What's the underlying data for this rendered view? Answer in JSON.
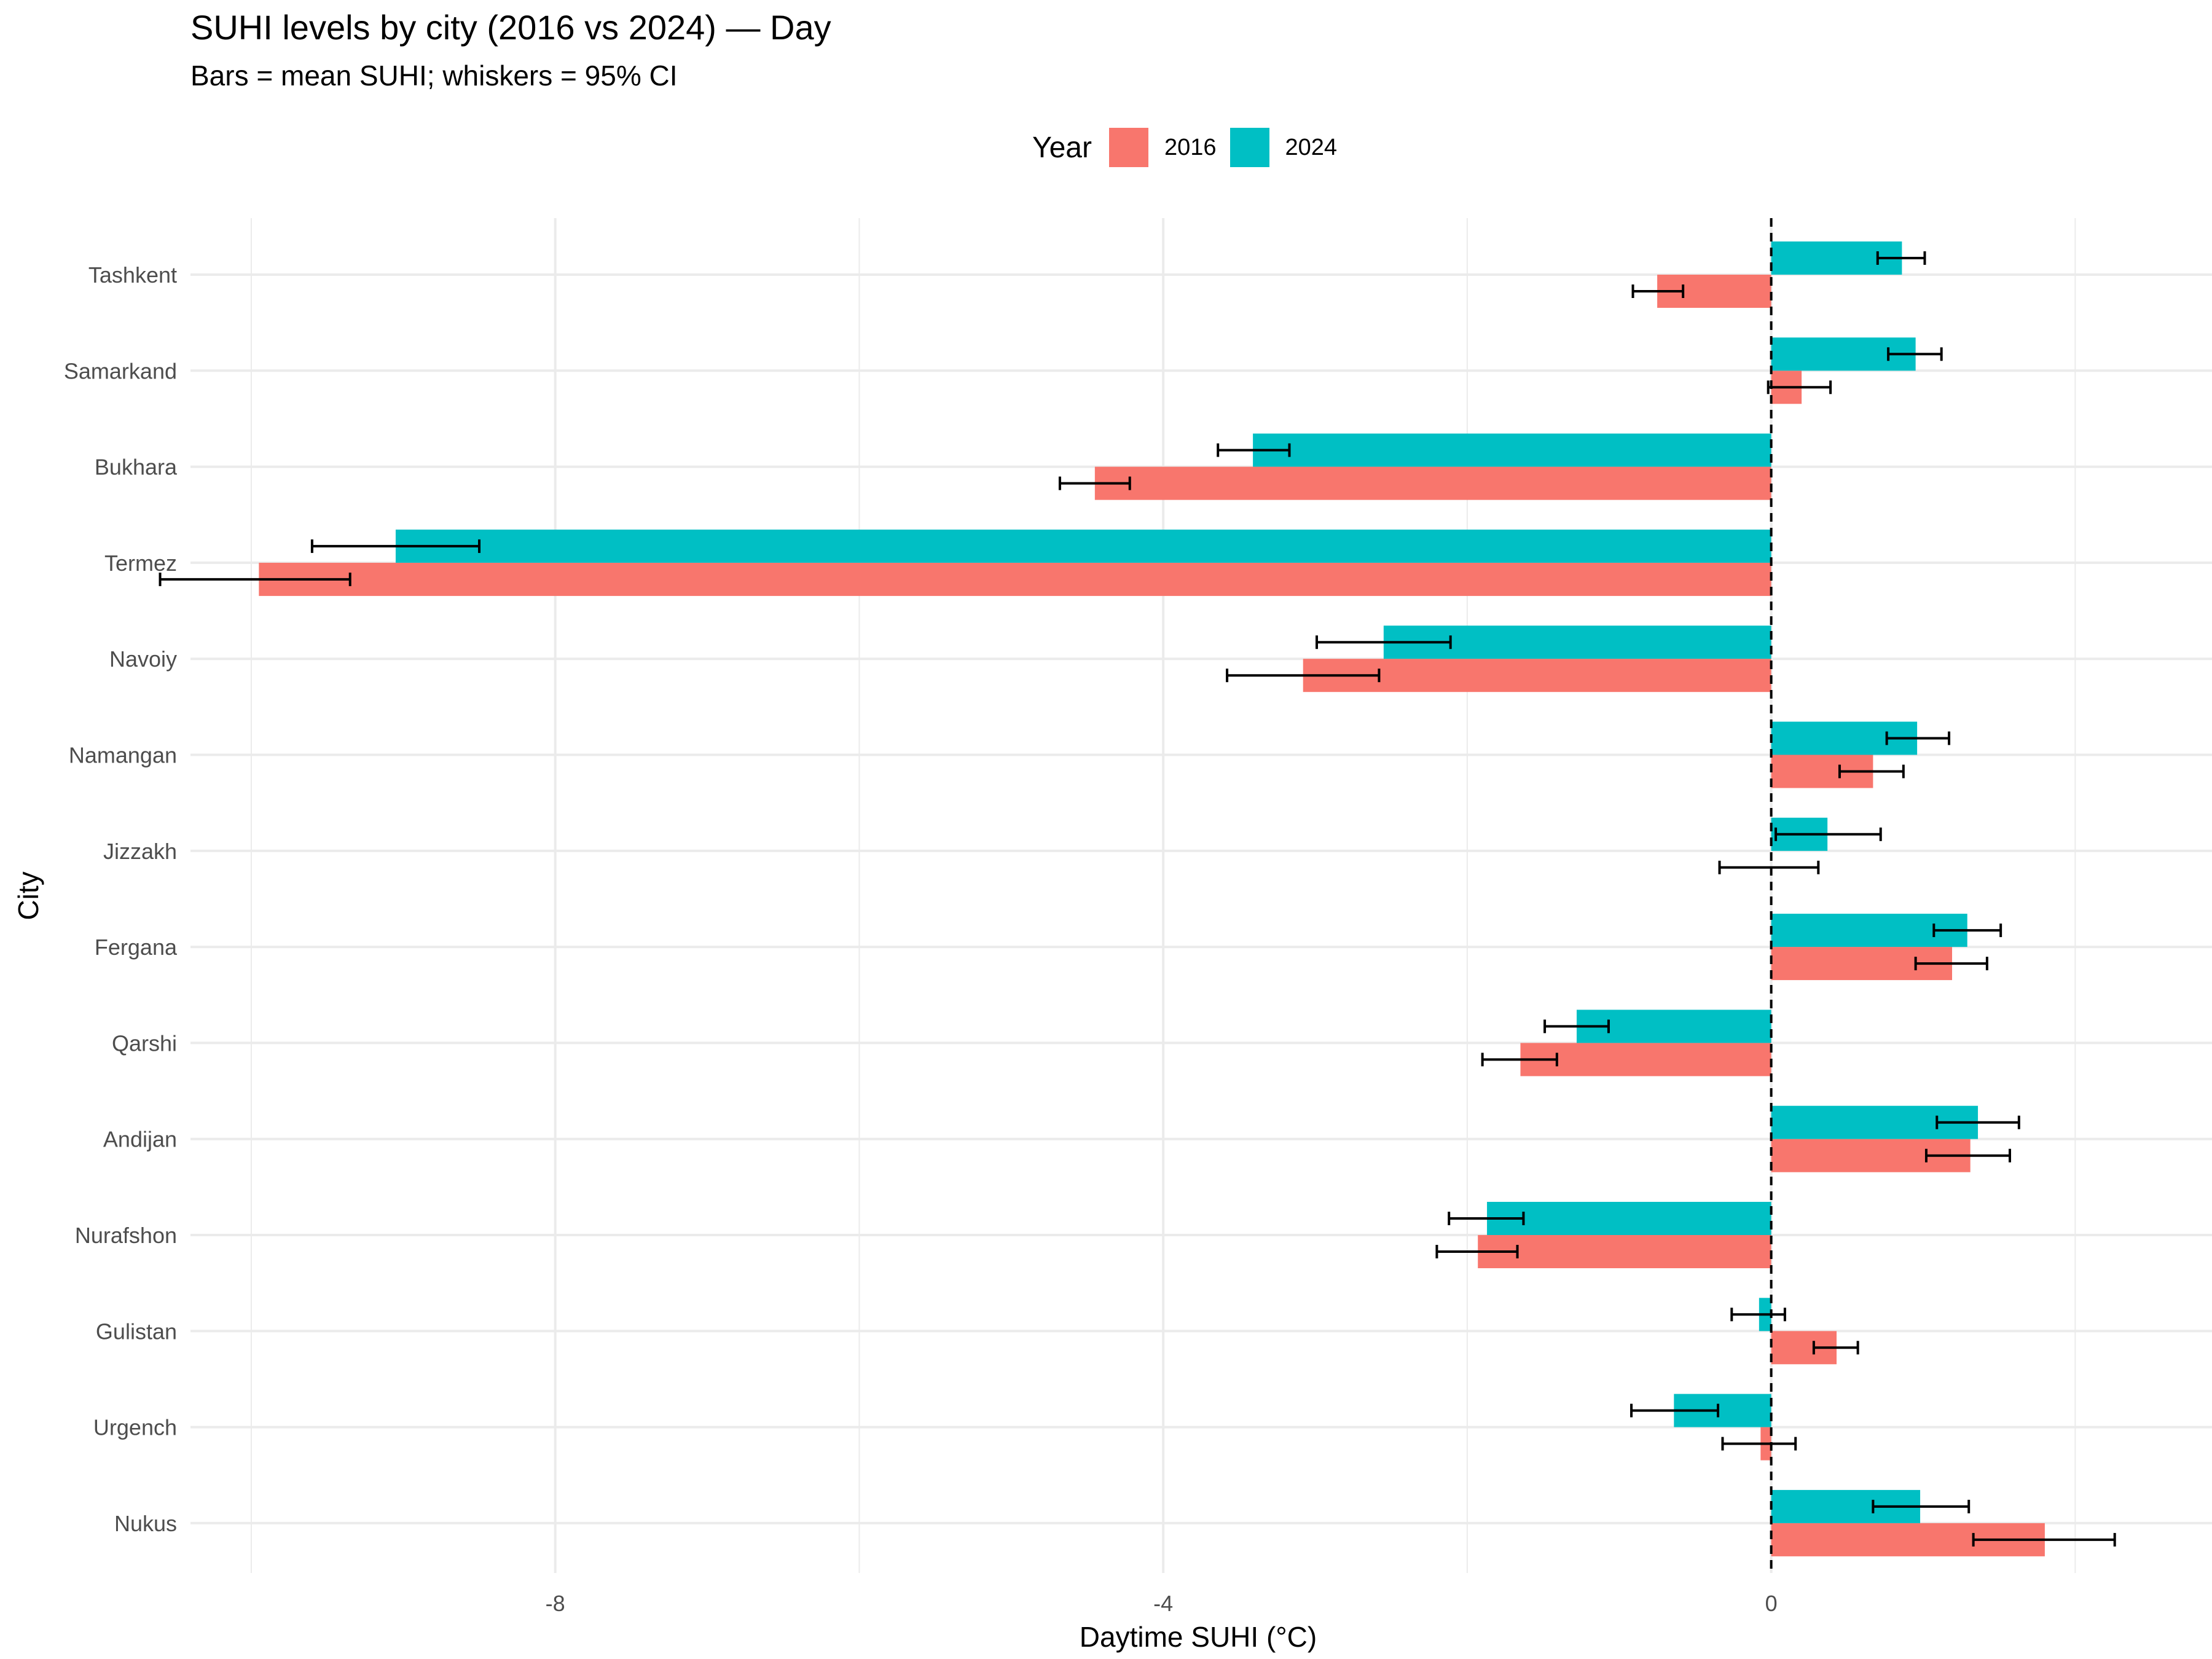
{
  "chart_data": {
    "type": "bar",
    "orientation": "horizontal",
    "title": "SUHI levels by city (2016 vs 2024) — Day",
    "subtitle": "Bars = mean SUHI; whiskers = 95% CI",
    "xlabel": "Daytime SUHI (°C)",
    "ylabel": "City",
    "xlim": [
      -10.4,
      2.9
    ],
    "xticks": [
      -8,
      -4,
      0
    ],
    "xtick_labels": [
      "-8",
      "-4",
      "0"
    ],
    "reference_line": {
      "x": 0,
      "style": "dashed"
    },
    "grid": true,
    "legend": {
      "title": "Year",
      "position": "top"
    },
    "categories": [
      "Tashkent",
      "Samarkand",
      "Bukhara",
      "Termez",
      "Navoiy",
      "Namangan",
      "Jizzakh",
      "Fergana",
      "Qarshi",
      "Andijan",
      "Nurafshon",
      "Gulistan",
      "Urgench",
      "Nukus"
    ],
    "series": [
      {
        "name": "2016",
        "color": "#F8766D",
        "values": [
          -0.75,
          0.2,
          -4.45,
          -9.95,
          -3.08,
          0.67,
          0.0,
          1.19,
          -1.65,
          1.31,
          -1.93,
          0.43,
          -0.07,
          1.8
        ],
        "ci_low": [
          -0.91,
          -0.02,
          -4.68,
          -10.6,
          -3.58,
          0.45,
          -0.34,
          0.95,
          -1.9,
          1.02,
          -2.2,
          0.28,
          -0.32,
          1.33
        ],
        "ci_high": [
          -0.58,
          0.39,
          -4.22,
          -9.35,
          -2.58,
          0.87,
          0.31,
          1.42,
          -1.41,
          1.57,
          -1.67,
          0.57,
          0.16,
          2.26
        ]
      },
      {
        "name": "2024",
        "color": "#00BFC4",
        "values": [
          0.86,
          0.95,
          -3.41,
          -9.05,
          -2.55,
          0.96,
          0.37,
          1.29,
          -1.28,
          1.36,
          -1.87,
          -0.08,
          -0.64,
          0.98
        ],
        "ci_low": [
          0.7,
          0.77,
          -3.64,
          -9.6,
          -2.99,
          0.76,
          0.03,
          1.07,
          -1.49,
          1.09,
          -2.12,
          -0.26,
          -0.92,
          0.67
        ],
        "ci_high": [
          1.01,
          1.12,
          -3.17,
          -8.5,
          -2.11,
          1.17,
          0.72,
          1.51,
          -1.07,
          1.63,
          -1.63,
          0.09,
          -0.35,
          1.3
        ]
      }
    ]
  }
}
